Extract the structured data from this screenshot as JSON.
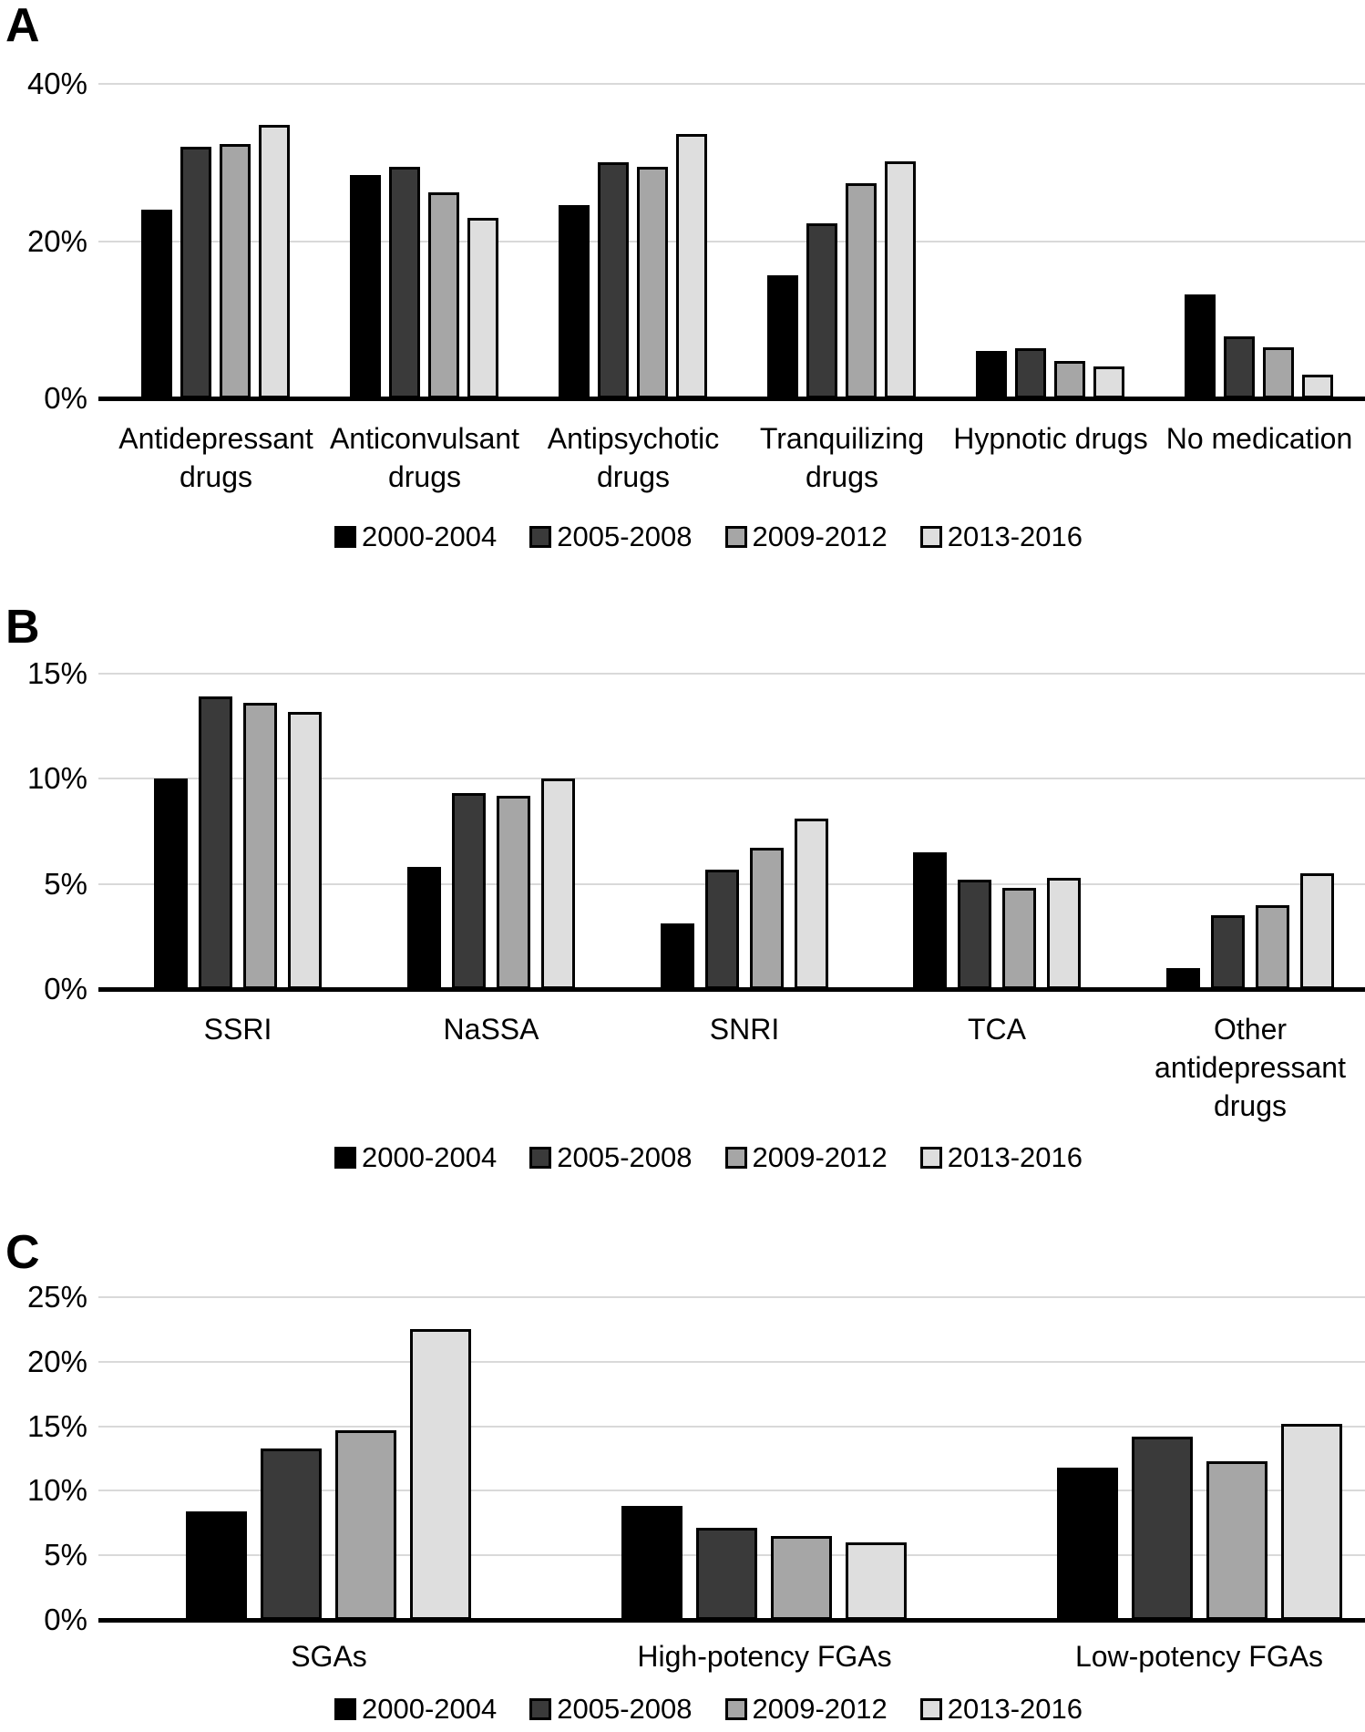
{
  "figure": {
    "background": "#ffffff",
    "gridline_color": "#d9d9d9",
    "axis_color": "#000000"
  },
  "legend_labels": [
    "2000-2004",
    "2005-2008",
    "2009-2012",
    "2013-2016"
  ],
  "series_colors": [
    "#000000",
    "#3a3a3a",
    "#a6a6a6",
    "#dedede"
  ],
  "chart_data": [
    {
      "id": "A",
      "type": "bar",
      "panel_label": "A",
      "title": "",
      "xlabel": "",
      "ylabel": "",
      "grid": true,
      "legend_position": "bottom",
      "y_ticks": [
        "0%",
        "20%",
        "40%"
      ],
      "y_tick_values": [
        0,
        20,
        40
      ],
      "ylim": [
        0,
        40
      ],
      "categories": [
        "Antidepressant\ndrugs",
        "Anticonvulsant\ndrugs",
        "Antipsychotic\ndrugs",
        "Tranquilizing\ndrugs",
        "Hypnotic drugs",
        "No medication"
      ],
      "series": [
        {
          "name": "2000-2004",
          "color": "#000000",
          "values": [
            24.0,
            28.4,
            24.6,
            15.6,
            6.0,
            13.2
          ]
        },
        {
          "name": "2005-2008",
          "color": "#3a3a3a",
          "values": [
            32.0,
            29.4,
            30.0,
            22.3,
            6.4,
            7.9
          ]
        },
        {
          "name": "2009-2012",
          "color": "#a6a6a6",
          "values": [
            32.4,
            26.2,
            29.4,
            27.4,
            4.7,
            6.5
          ]
        },
        {
          "name": "2013-2016",
          "color": "#dedede",
          "values": [
            34.8,
            23.0,
            33.6,
            30.2,
            4.1,
            3.0
          ]
        }
      ]
    },
    {
      "id": "B",
      "type": "bar",
      "panel_label": "B",
      "title": "",
      "xlabel": "",
      "ylabel": "",
      "grid": true,
      "legend_position": "bottom",
      "y_ticks": [
        "0%",
        "5%",
        "10%",
        "15%"
      ],
      "y_tick_values": [
        0,
        5,
        10,
        15
      ],
      "ylim": [
        0,
        15
      ],
      "categories": [
        "SSRI",
        "NaSSA",
        "SNRI",
        "TCA",
        "Other\nantidepressant\ndrugs"
      ],
      "series": [
        {
          "name": "2000-2004",
          "color": "#000000",
          "values": [
            10.0,
            5.8,
            3.1,
            6.5,
            1.0
          ]
        },
        {
          "name": "2005-2008",
          "color": "#3a3a3a",
          "values": [
            13.9,
            9.3,
            5.7,
            5.2,
            3.5
          ]
        },
        {
          "name": "2009-2012",
          "color": "#a6a6a6",
          "values": [
            13.6,
            9.2,
            6.7,
            4.8,
            4.0
          ]
        },
        {
          "name": "2013-2016",
          "color": "#dedede",
          "values": [
            13.2,
            10.0,
            8.1,
            5.3,
            5.5
          ]
        }
      ]
    },
    {
      "id": "C",
      "type": "bar",
      "panel_label": "C",
      "title": "",
      "xlabel": "",
      "ylabel": "",
      "grid": true,
      "legend_position": "bottom",
      "y_ticks": [
        "0%",
        "5%",
        "10%",
        "15%",
        "20%",
        "25%"
      ],
      "y_tick_values": [
        0,
        5,
        10,
        15,
        20,
        25
      ],
      "ylim": [
        0,
        25
      ],
      "categories": [
        "SGAs",
        "High-potency FGAs",
        "Low-potency FGAs"
      ],
      "series": [
        {
          "name": "2000-2004",
          "color": "#000000",
          "values": [
            8.4,
            8.8,
            11.8
          ]
        },
        {
          "name": "2005-2008",
          "color": "#3a3a3a",
          "values": [
            13.3,
            7.1,
            14.2
          ]
        },
        {
          "name": "2009-2012",
          "color": "#a6a6a6",
          "values": [
            14.7,
            6.5,
            12.3
          ]
        },
        {
          "name": "2013-2016",
          "color": "#dedede",
          "values": [
            22.5,
            6.0,
            15.2
          ]
        }
      ]
    }
  ]
}
